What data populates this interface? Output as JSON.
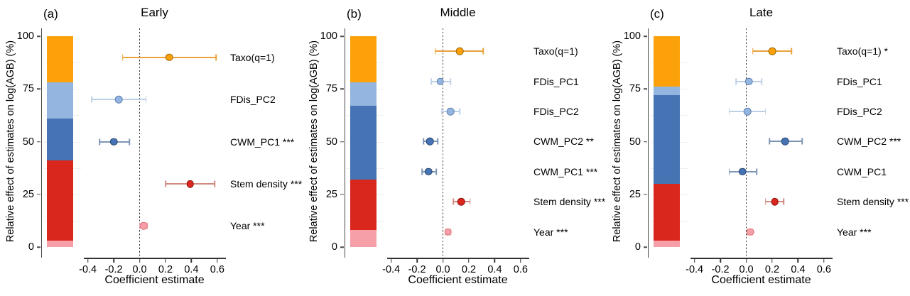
{
  "figure": {
    "ylabel": "Relative effect of estimates on log(AGB) (%)",
    "xlabel": "Coefficient estimate",
    "x_ticks": [
      {
        "label": "-0.4",
        "value": -0.4
      },
      {
        "label": "-0.2",
        "value": -0.2
      },
      {
        "label": "0.0",
        "value": 0.0
      },
      {
        "label": "0.2",
        "value": 0.2
      },
      {
        "label": "0.4",
        "value": 0.4
      },
      {
        "label": "0.6",
        "value": 0.6
      }
    ],
    "y_ticks": [
      {
        "label": "100",
        "value": 100
      },
      {
        "label": "75",
        "value": 75
      },
      {
        "label": "50",
        "value": 50
      },
      {
        "label": "25",
        "value": 25
      },
      {
        "label": "0",
        "value": 0
      }
    ],
    "xlim": [
      -0.42,
      0.65
    ],
    "zero_reference_line": 0.0,
    "grid": "faint horizontal minor gridlines behind stacked bar"
  },
  "palette": {
    "orange": {
      "point": "#FCA10A",
      "bar": "#EAA23A",
      "outline": "#9A6400"
    },
    "lightblue": {
      "point": "#93B5DF",
      "bar": "#BDD0E6",
      "outline": "#5B7FB0"
    },
    "darkblue": {
      "point": "#4573B3",
      "bar": "#7E96B5",
      "outline": "#24466F"
    },
    "red": {
      "point": "#D9271E",
      "bar": "#D28A80",
      "outline": "#8E140E"
    },
    "pink": {
      "point": "#F79FA8",
      "bar": "#F2ACB2",
      "outline": "#D9707D"
    }
  },
  "chart_data": [
    {
      "type": "forest-plot-with-stacked-bar",
      "panel_label": "(a)",
      "title": "Early",
      "stacked_bar_pct_bottom_to_top": [
        {
          "name": "Year",
          "color_key": "pink",
          "value": 3
        },
        {
          "name": "Stem density",
          "color_key": "red",
          "value": 38
        },
        {
          "name": "CWM",
          "color_key": "darkblue",
          "value": 20
        },
        {
          "name": "FDis",
          "color_key": "lightblue",
          "value": 17
        },
        {
          "name": "Taxo",
          "color_key": "orange",
          "value": 22
        }
      ],
      "rows_top_to_bottom": [
        {
          "label": "Taxo(q=1)",
          "estimate": 0.23,
          "ci": [
            -0.13,
            0.59
          ],
          "color_key": "orange"
        },
        {
          "label": "FDis_PC2",
          "estimate": -0.16,
          "ci": [
            -0.37,
            0.05
          ],
          "color_key": "lightblue"
        },
        {
          "label": "CWM_PC1 ***",
          "estimate": -0.2,
          "ci": [
            -0.31,
            -0.08
          ],
          "color_key": "darkblue"
        },
        {
          "label": "Stem density ***",
          "estimate": 0.39,
          "ci": [
            0.2,
            0.58
          ],
          "color_key": "red"
        },
        {
          "label": "Year ***",
          "estimate": 0.03,
          "ci": [
            0.0,
            0.06
          ],
          "color_key": "pink"
        }
      ]
    },
    {
      "type": "forest-plot-with-stacked-bar",
      "panel_label": "(b)",
      "title": "Middle",
      "stacked_bar_pct_bottom_to_top": [
        {
          "name": "Year",
          "color_key": "pink",
          "value": 8
        },
        {
          "name": "Stem density",
          "color_key": "red",
          "value": 24
        },
        {
          "name": "CWM",
          "color_key": "darkblue",
          "value": 35
        },
        {
          "name": "FDis",
          "color_key": "lightblue",
          "value": 11
        },
        {
          "name": "Taxo",
          "color_key": "orange",
          "value": 22
        }
      ],
      "rows_top_to_bottom": [
        {
          "label": "Taxo(q=1)",
          "estimate": 0.13,
          "ci": [
            -0.06,
            0.31
          ],
          "color_key": "orange"
        },
        {
          "label": "FDis_PC1",
          "estimate": -0.02,
          "ci": [
            -0.09,
            0.06
          ],
          "color_key": "lightblue"
        },
        {
          "label": "FDis_PC2",
          "estimate": 0.06,
          "ci": [
            -0.01,
            0.13
          ],
          "color_key": "lightblue"
        },
        {
          "label": "CWM_PC2 **",
          "estimate": -0.1,
          "ci": [
            -0.15,
            -0.04
          ],
          "color_key": "darkblue"
        },
        {
          "label": "CWM_PC1 ***",
          "estimate": -0.11,
          "ci": [
            -0.16,
            -0.05
          ],
          "color_key": "darkblue"
        },
        {
          "label": "Stem density ***",
          "estimate": 0.14,
          "ci": [
            0.08,
            0.21
          ],
          "color_key": "red"
        },
        {
          "label": "Year ***",
          "estimate": 0.04,
          "ci": [
            0.02,
            0.06
          ],
          "color_key": "pink"
        }
      ]
    },
    {
      "type": "forest-plot-with-stacked-bar",
      "panel_label": "(c)",
      "title": "Late",
      "stacked_bar_pct_bottom_to_top": [
        {
          "name": "Year",
          "color_key": "pink",
          "value": 3
        },
        {
          "name": "Stem density",
          "color_key": "red",
          "value": 27
        },
        {
          "name": "CWM",
          "color_key": "darkblue",
          "value": 42
        },
        {
          "name": "FDis",
          "color_key": "lightblue",
          "value": 4
        },
        {
          "name": "Taxo",
          "color_key": "orange",
          "value": 24
        }
      ],
      "rows_top_to_bottom": [
        {
          "label": "Taxo(q=1) *",
          "estimate": 0.2,
          "ci": [
            0.05,
            0.35
          ],
          "color_key": "orange"
        },
        {
          "label": "FDis_PC1",
          "estimate": 0.02,
          "ci": [
            -0.08,
            0.12
          ],
          "color_key": "lightblue"
        },
        {
          "label": "FDis_PC2",
          "estimate": 0.01,
          "ci": [
            -0.13,
            0.15
          ],
          "color_key": "lightblue"
        },
        {
          "label": "CWM_PC2 ***",
          "estimate": 0.3,
          "ci": [
            0.18,
            0.43
          ],
          "color_key": "darkblue"
        },
        {
          "label": "CWM_PC1",
          "estimate": -0.03,
          "ci": [
            -0.13,
            0.08
          ],
          "color_key": "darkblue"
        },
        {
          "label": "Stem density ***",
          "estimate": 0.22,
          "ci": [
            0.15,
            0.29
          ],
          "color_key": "red"
        },
        {
          "label": "Year ***",
          "estimate": 0.03,
          "ci": [
            0.01,
            0.05
          ],
          "color_key": "pink"
        }
      ]
    }
  ]
}
